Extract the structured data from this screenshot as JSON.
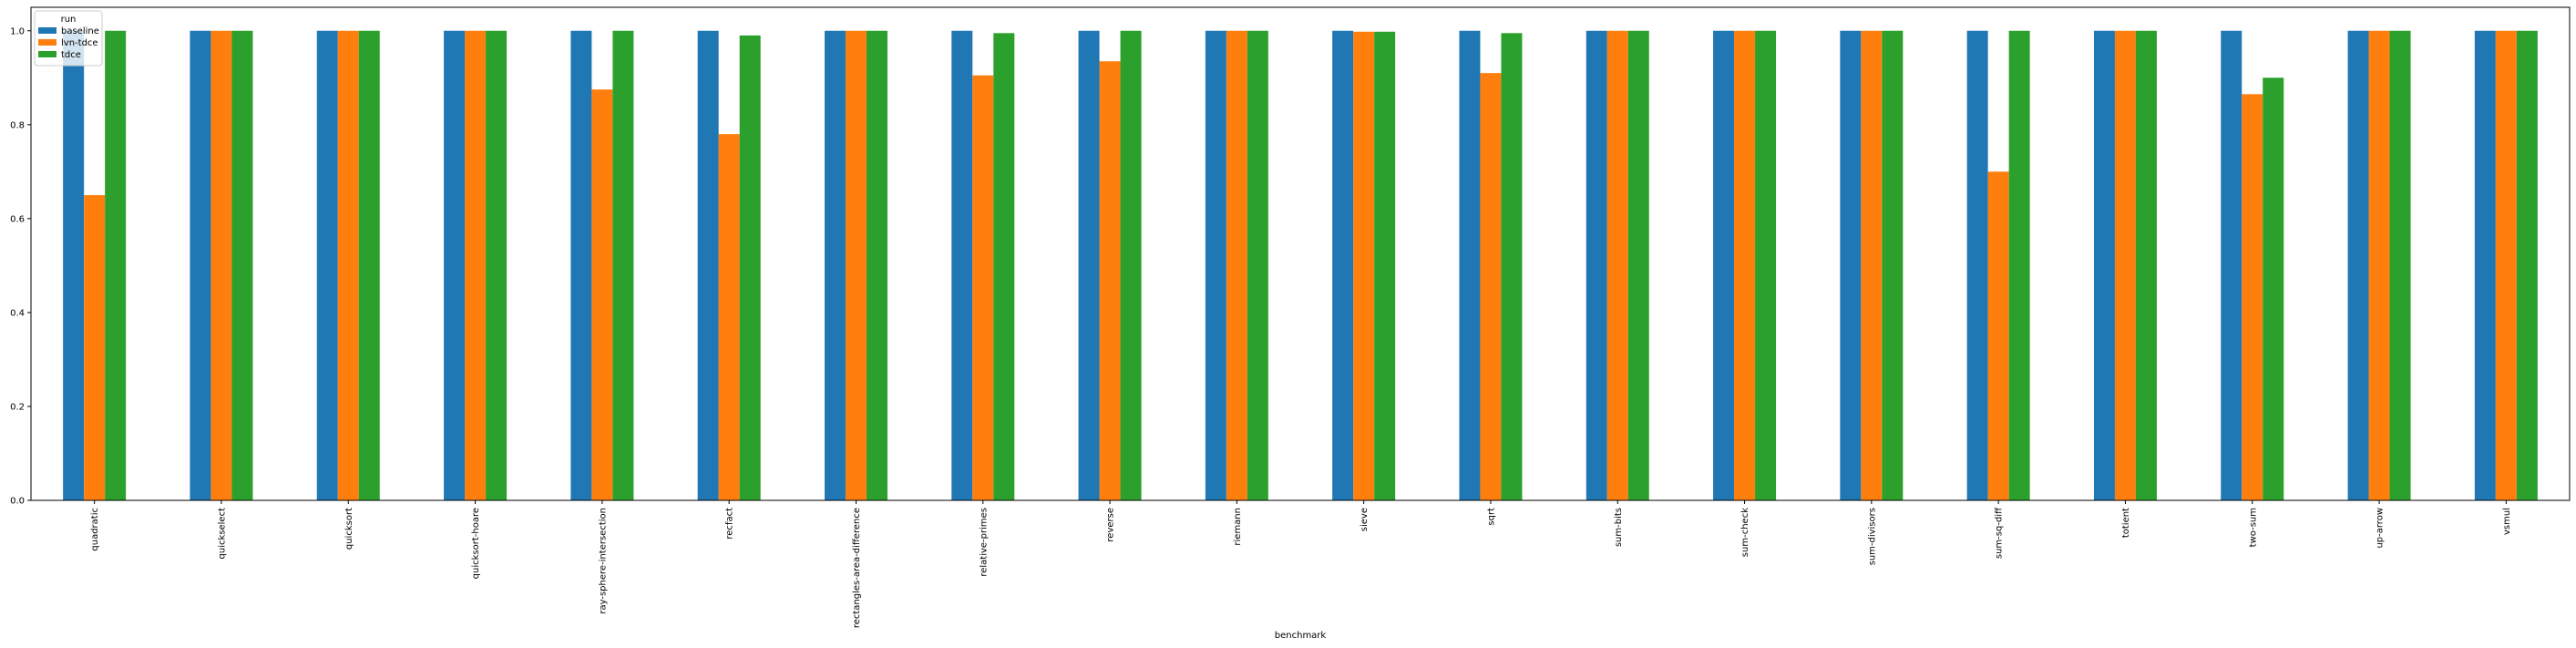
{
  "chart_data": {
    "type": "bar",
    "xlabel": "benchmark",
    "ylabel": "",
    "ylim": [
      0,
      1.05
    ],
    "yticks": [
      "0.0",
      "0.2",
      "0.4",
      "0.6",
      "0.8",
      "1.0"
    ],
    "grid": false,
    "legend": {
      "title": "run",
      "placement": "top-left"
    },
    "categories": [
      "quadratic",
      "quickselect",
      "quicksort",
      "quicksort-hoare",
      "ray-sphere-intersection",
      "recfact",
      "rectangles-area-difference",
      "relative-primes",
      "reverse",
      "riemann",
      "sieve",
      "sqrt",
      "sum-bits",
      "sum-check",
      "sum-divisors",
      "sum-sq-diff",
      "totient",
      "two-sum",
      "up-arrow",
      "vsmul"
    ],
    "series": [
      {
        "name": "baseline",
        "color": "#1f77b4",
        "values": [
          1.0,
          1.0,
          1.0,
          1.0,
          1.0,
          1.0,
          1.0,
          1.0,
          1.0,
          1.0,
          1.0,
          1.0,
          1.0,
          1.0,
          1.0,
          1.0,
          1.0,
          1.0,
          1.0,
          1.0
        ]
      },
      {
        "name": "lvn-tdce",
        "color": "#ff7f0e",
        "values": [
          0.65,
          1.0,
          1.0,
          1.0,
          0.875,
          0.78,
          1.0,
          0.905,
          0.935,
          1.0,
          0.998,
          0.91,
          1.0,
          1.0,
          1.0,
          0.7,
          1.0,
          0.865,
          1.0,
          1.0
        ]
      },
      {
        "name": "tdce",
        "color": "#2ca02c",
        "values": [
          1.0,
          1.0,
          1.0,
          1.0,
          1.0,
          0.99,
          1.0,
          0.995,
          1.0,
          1.0,
          0.998,
          0.995,
          1.0,
          1.0,
          1.0,
          1.0,
          1.0,
          0.9,
          1.0,
          1.0
        ]
      }
    ]
  }
}
